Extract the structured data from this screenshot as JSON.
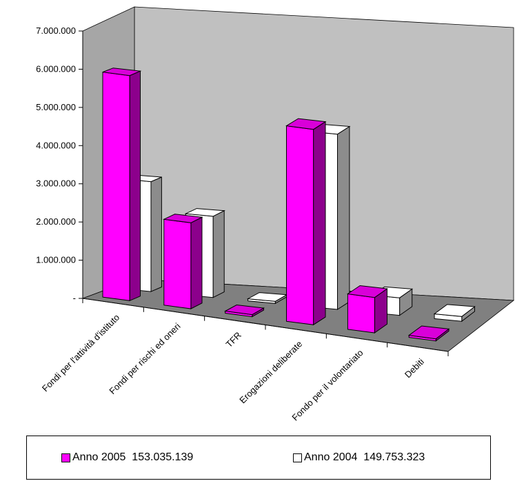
{
  "chart_data": {
    "type": "bar",
    "title": "",
    "xlabel": "",
    "ylabel": "",
    "ylim": [
      0,
      7000000
    ],
    "y_ticks": [
      "-",
      "1.000.000",
      "2.000.000",
      "3.000.000",
      "4.000.000",
      "5.000.000",
      "6.000.000",
      "7.000.000"
    ],
    "categories": [
      "Fondi per l'attività d'istituto",
      "Fondi per rischi ed oneri",
      "TFR",
      "Erogazioni deliberate",
      "Fondo per il volontariato",
      "Debiti"
    ],
    "series": [
      {
        "name": "Anno 2005",
        "total": "153.035.139",
        "color": "#ff00ff",
        "values": [
          6680000,
          2550000,
          15000,
          5800000,
          1050000,
          15000
        ]
      },
      {
        "name": "Anno 2004",
        "total": "149.753.323",
        "color": "#ffffff",
        "values": [
          3450000,
          2550000,
          60000,
          5500000,
          550000,
          150000
        ]
      }
    ],
    "grid": false,
    "legend_position": "bottom",
    "style": "3d-columns"
  }
}
